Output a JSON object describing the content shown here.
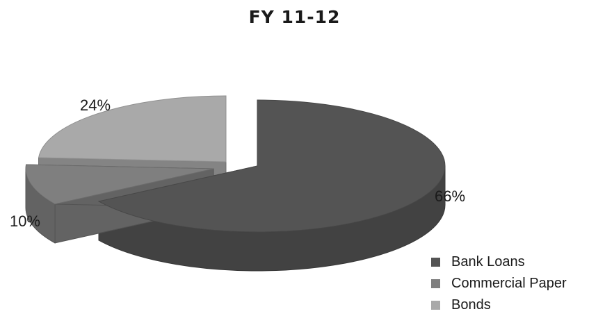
{
  "chart_data": {
    "type": "pie",
    "title": "FY 11-12",
    "categories": [
      "Bank Loans",
      "Commercial Paper",
      "Bonds"
    ],
    "values": [
      66,
      10,
      24
    ],
    "data_labels": [
      "66%",
      "10%",
      "24%"
    ],
    "colors": [
      "#545454",
      "#7f7f7f",
      "#a9a9a9"
    ],
    "style": "3d-exploded",
    "legend_position": "bottom-right"
  }
}
